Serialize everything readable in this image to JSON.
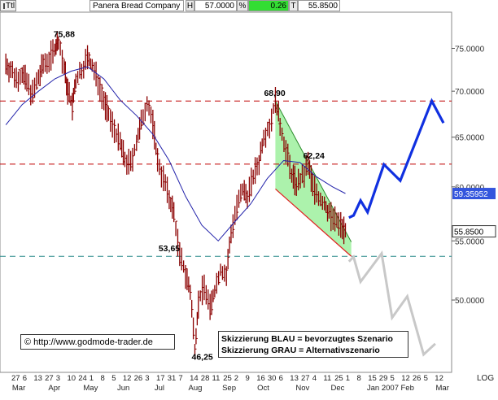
{
  "header": {
    "menu_label": "Ttl",
    "instrument": "Panera Bread Company",
    "high_flag": "H",
    "high_value": "57.0000",
    "pct_flag": "%",
    "pct_value": "0.26",
    "type_flag": "T",
    "last_value": "55.8500"
  },
  "footer": {
    "scale_label": "LOG"
  },
  "copyright": {
    "symbol": "©",
    "url": "http://www.godmode-trader.de"
  },
  "legend": {
    "line1": "Skizzierung BLAU = bevorzugtes Szenario",
    "line2": "Skizzierung GRAU = Alternativszenario"
  },
  "colors": {
    "price_bars": "#8b0000",
    "moving_average": "#2222aa",
    "resistance_line": "#c00000",
    "support_line": "#2a8c8c",
    "channel_fill": "#90ee90",
    "bull_scenario": "#1030e0",
    "bear_scenario": "#c8c8c8",
    "ma_value_bg": "#3355dd",
    "pct_value_bg": "#33dd33"
  },
  "chart_data": {
    "type": "line",
    "scale": "log",
    "ylim": [
      44.5,
      79.5
    ],
    "y_ticks": [
      50,
      55,
      60,
      65,
      70,
      75
    ],
    "y_tick_labels": [
      "50.0000",
      "55.0000",
      "60.0000",
      "65.0000",
      "70.0000",
      "75.0000"
    ],
    "x_date_ticks": [
      "27",
      "6",
      "13",
      "27",
      "3",
      "10",
      "24",
      "1",
      "8",
      "5",
      "12",
      "26",
      "3",
      "17",
      "31",
      "7",
      "14",
      "28",
      "11",
      "25",
      "2",
      "9",
      "16",
      "30",
      "6",
      "13",
      "27",
      "4",
      "11",
      "25",
      "1",
      "8",
      "15",
      "29",
      "5",
      "12",
      "26",
      "5",
      "12"
    ],
    "x_month_labels": [
      {
        "label": "Mar",
        "date": "2006-03-10"
      },
      {
        "label": "Apr",
        "date": "2006-04-10"
      },
      {
        "label": "May",
        "date": "2006-05-10"
      },
      {
        "label": "Jun",
        "date": "2006-06-08"
      },
      {
        "label": "Jul",
        "date": "2006-07-10"
      },
      {
        "label": "Aug",
        "date": "2006-08-08"
      },
      {
        "label": "Sep",
        "date": "2006-09-06"
      },
      {
        "label": "Oct",
        "date": "2006-10-06"
      },
      {
        "label": "Nov",
        "date": "2006-11-08"
      },
      {
        "label": "Dec",
        "date": "2006-12-08"
      },
      {
        "label": "Jan 2007",
        "date": "2007-01-08"
      },
      {
        "label": "Feb",
        "date": "2007-02-06"
      },
      {
        "label": "Mar",
        "date": "2007-03-08"
      }
    ],
    "price_series": [
      {
        "date": "2006-02-27",
        "close": 73.2
      },
      {
        "date": "2006-03-03",
        "close": 72.4
      },
      {
        "date": "2006-03-08",
        "close": 71.5
      },
      {
        "date": "2006-03-13",
        "close": 72.0
      },
      {
        "date": "2006-03-17",
        "close": 70.9
      },
      {
        "date": "2006-03-22",
        "close": 69.7
      },
      {
        "date": "2006-03-27",
        "close": 71.4
      },
      {
        "date": "2006-03-31",
        "close": 73.1
      },
      {
        "date": "2006-04-05",
        "close": 73.7
      },
      {
        "date": "2006-04-10",
        "close": 75.0
      },
      {
        "date": "2006-04-13",
        "close": 75.88
      },
      {
        "date": "2006-04-18",
        "close": 72.6
      },
      {
        "date": "2006-04-21",
        "close": 70.1
      },
      {
        "date": "2006-04-25",
        "close": 68.3
      },
      {
        "date": "2006-04-28",
        "close": 71.2
      },
      {
        "date": "2006-05-03",
        "close": 72.5
      },
      {
        "date": "2006-05-08",
        "close": 73.9
      },
      {
        "date": "2006-05-12",
        "close": 72.8
      },
      {
        "date": "2006-05-17",
        "close": 71.2
      },
      {
        "date": "2006-05-22",
        "close": 69.0
      },
      {
        "date": "2006-05-26",
        "close": 67.3
      },
      {
        "date": "2006-05-31",
        "close": 65.9
      },
      {
        "date": "2006-06-05",
        "close": 64.3
      },
      {
        "date": "2006-06-09",
        "close": 62.6
      },
      {
        "date": "2006-06-14",
        "close": 62.2
      },
      {
        "date": "2006-06-19",
        "close": 64.5
      },
      {
        "date": "2006-06-23",
        "close": 66.4
      },
      {
        "date": "2006-06-28",
        "close": 68.9
      },
      {
        "date": "2006-07-03",
        "close": 66.4
      },
      {
        "date": "2006-07-07",
        "close": 62.6
      },
      {
        "date": "2006-07-12",
        "close": 60.8
      },
      {
        "date": "2006-07-17",
        "close": 58.9
      },
      {
        "date": "2006-07-21",
        "close": 57.5
      },
      {
        "date": "2006-07-26",
        "close": 53.65
      },
      {
        "date": "2006-07-31",
        "close": 52.2
      },
      {
        "date": "2006-08-04",
        "close": 50.6
      },
      {
        "date": "2006-08-08",
        "close": 46.25
      },
      {
        "date": "2006-08-11",
        "close": 49.8
      },
      {
        "date": "2006-08-16",
        "close": 51.2
      },
      {
        "date": "2006-08-21",
        "close": 49.3
      },
      {
        "date": "2006-08-25",
        "close": 50.8
      },
      {
        "date": "2006-08-30",
        "close": 52.5
      },
      {
        "date": "2006-09-04",
        "close": 52.0
      },
      {
        "date": "2006-09-08",
        "close": 55.8
      },
      {
        "date": "2006-09-13",
        "close": 58.0
      },
      {
        "date": "2006-09-18",
        "close": 59.6
      },
      {
        "date": "2006-09-22",
        "close": 59.2
      },
      {
        "date": "2006-09-27",
        "close": 61.0
      },
      {
        "date": "2006-10-02",
        "close": 62.5
      },
      {
        "date": "2006-10-06",
        "close": 65.2
      },
      {
        "date": "2006-10-11",
        "close": 66.2
      },
      {
        "date": "2006-10-16",
        "close": 68.9
      },
      {
        "date": "2006-10-20",
        "close": 66.3
      },
      {
        "date": "2006-10-25",
        "close": 63.6
      },
      {
        "date": "2006-10-30",
        "close": 61.2
      },
      {
        "date": "2006-11-03",
        "close": 60.3
      },
      {
        "date": "2006-11-08",
        "close": 60.8
      },
      {
        "date": "2006-11-13",
        "close": 62.24
      },
      {
        "date": "2006-11-17",
        "close": 60.2
      },
      {
        "date": "2006-11-22",
        "close": 59.0
      },
      {
        "date": "2006-11-27",
        "close": 58.3
      },
      {
        "date": "2006-12-01",
        "close": 57.5
      },
      {
        "date": "2006-12-06",
        "close": 56.8
      },
      {
        "date": "2006-12-11",
        "close": 56.4
      },
      {
        "date": "2006-12-15",
        "close": 55.85
      }
    ],
    "moving_average": [
      {
        "date": "2006-02-27",
        "value": 66.3
      },
      {
        "date": "2006-03-13",
        "value": 68.5
      },
      {
        "date": "2006-03-27",
        "value": 70.0
      },
      {
        "date": "2006-04-10",
        "value": 71.4
      },
      {
        "date": "2006-04-24",
        "value": 72.3
      },
      {
        "date": "2006-05-08",
        "value": 72.8
      },
      {
        "date": "2006-05-22",
        "value": 71.4
      },
      {
        "date": "2006-06-05",
        "value": 69.0
      },
      {
        "date": "2006-06-19",
        "value": 67.3
      },
      {
        "date": "2006-07-03",
        "value": 65.3
      },
      {
        "date": "2006-07-17",
        "value": 62.6
      },
      {
        "date": "2006-07-31",
        "value": 59.1
      },
      {
        "date": "2006-08-14",
        "value": 56.4
      },
      {
        "date": "2006-08-28",
        "value": 55.0
      },
      {
        "date": "2006-09-11",
        "value": 56.7
      },
      {
        "date": "2006-09-25",
        "value": 58.4
      },
      {
        "date": "2006-10-09",
        "value": 60.8
      },
      {
        "date": "2006-10-23",
        "value": 62.6
      },
      {
        "date": "2006-11-06",
        "value": 62.4
      },
      {
        "date": "2006-11-20",
        "value": 61.0
      },
      {
        "date": "2006-12-04",
        "value": 60.0
      },
      {
        "date": "2006-12-15",
        "value": 59.35952
      }
    ],
    "horizontal_lines": [
      {
        "name": "resistance-68-90",
        "y": 68.9,
        "style": "dashed",
        "color": "#c00000"
      },
      {
        "name": "resistance-62-24",
        "y": 62.24,
        "style": "dashed",
        "color": "#c00000"
      },
      {
        "name": "support-53-65",
        "y": 53.65,
        "style": "dashed",
        "color": "#2a8c8c"
      }
    ],
    "channel": {
      "upper": [
        {
          "date": "2006-10-16",
          "y": 68.9
        },
        {
          "date": "2006-12-20",
          "y": 54.9
        }
      ],
      "lower": [
        {
          "date": "2006-10-16",
          "y": 59.8
        },
        {
          "date": "2006-12-20",
          "y": 53.65
        }
      ]
    },
    "blue_scenario": [
      {
        "date": "2006-12-18",
        "y": 57.1
      },
      {
        "date": "2006-12-22",
        "y": 57.3
      },
      {
        "date": "2006-12-28",
        "y": 58.7
      },
      {
        "date": "2007-01-03",
        "y": 57.6
      },
      {
        "date": "2007-01-17",
        "y": 62.2
      },
      {
        "date": "2007-01-31",
        "y": 60.6
      },
      {
        "date": "2007-02-27",
        "y": 68.9
      },
      {
        "date": "2007-03-09",
        "y": 66.5
      }
    ],
    "grey_scenario": [
      {
        "date": "2006-12-18",
        "y": 53.2
      },
      {
        "date": "2006-12-22",
        "y": 53.6
      },
      {
        "date": "2006-12-28",
        "y": 51.5
      },
      {
        "date": "2007-01-15",
        "y": 53.9
      },
      {
        "date": "2007-01-24",
        "y": 48.6
      },
      {
        "date": "2007-02-06",
        "y": 50.3
      },
      {
        "date": "2007-02-20",
        "y": 45.8
      },
      {
        "date": "2007-03-02",
        "y": 46.6
      }
    ],
    "annotations": [
      {
        "text": "75,88",
        "date": "2006-04-13",
        "y": 75.88
      },
      {
        "text": "68,90",
        "date": "2006-10-16",
        "y": 68.9
      },
      {
        "text": "62,24",
        "date": "2006-11-13",
        "y": 62.24
      },
      {
        "text": "53,65",
        "date": "2006-07-26",
        "y": 53.65
      },
      {
        "text": "46,25",
        "date": "2006-08-08",
        "y": 46.25
      }
    ],
    "value_tags": [
      {
        "text": "59.35952",
        "y": 59.35952,
        "kind": "moving-average"
      },
      {
        "text": "55.8500",
        "y": 55.85,
        "kind": "last-price"
      }
    ]
  }
}
